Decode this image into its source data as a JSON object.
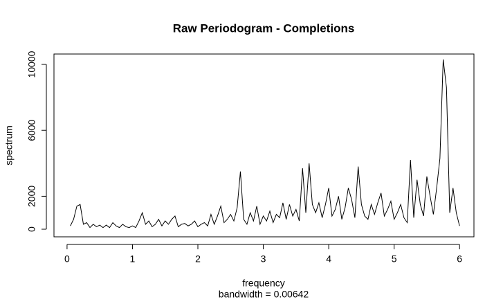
{
  "chart_data": {
    "type": "line",
    "title": "Raw Periodogram - Completions",
    "x_label": "frequency",
    "subtitle": "bandwidth = 0.00642",
    "y_label": "spectrum",
    "color": "#000000",
    "xlim": [
      -0.2,
      6.22
    ],
    "ylim": [
      -462,
      10630
    ],
    "xticks": [
      0,
      1,
      2,
      3,
      4,
      5,
      6
    ],
    "yticks": [
      0,
      2000,
      6000,
      10000
    ],
    "x": [
      0.05,
      0.1,
      0.15,
      0.2,
      0.25,
      0.3,
      0.35,
      0.4,
      0.45,
      0.5,
      0.55,
      0.6,
      0.65,
      0.7,
      0.75,
      0.8,
      0.85,
      0.9,
      0.95,
      1.0,
      1.05,
      1.1,
      1.15,
      1.2,
      1.25,
      1.3,
      1.35,
      1.4,
      1.45,
      1.5,
      1.55,
      1.6,
      1.65,
      1.7,
      1.75,
      1.8,
      1.85,
      1.9,
      1.95,
      2.0,
      2.05,
      2.1,
      2.15,
      2.2,
      2.25,
      2.3,
      2.35,
      2.4,
      2.45,
      2.5,
      2.55,
      2.6,
      2.65,
      2.7,
      2.75,
      2.8,
      2.85,
      2.9,
      2.95,
      3.0,
      3.05,
      3.1,
      3.15,
      3.2,
      3.25,
      3.3,
      3.35,
      3.4,
      3.45,
      3.5,
      3.55,
      3.6,
      3.65,
      3.7,
      3.75,
      3.8,
      3.85,
      3.9,
      3.95,
      4.0,
      4.05,
      4.1,
      4.15,
      4.2,
      4.25,
      4.3,
      4.35,
      4.4,
      4.45,
      4.5,
      4.55,
      4.6,
      4.65,
      4.7,
      4.75,
      4.8,
      4.85,
      4.9,
      4.95,
      5.0,
      5.05,
      5.1,
      5.15,
      5.2,
      5.25,
      5.3,
      5.35,
      5.4,
      5.45,
      5.5,
      5.55,
      5.6,
      5.65,
      5.7,
      5.75,
      5.8,
      5.85,
      5.9,
      5.95,
      6.0
    ],
    "values": [
      200,
      600,
      1400,
      1500,
      300,
      400,
      100,
      300,
      150,
      250,
      100,
      250,
      100,
      400,
      200,
      100,
      300,
      150,
      100,
      200,
      100,
      500,
      1000,
      300,
      500,
      150,
      300,
      600,
      200,
      500,
      300,
      600,
      800,
      150,
      300,
      350,
      200,
      300,
      500,
      150,
      300,
      400,
      200,
      900,
      300,
      800,
      1400,
      400,
      600,
      900,
      500,
      1300,
      3500,
      600,
      300,
      1000,
      500,
      1400,
      300,
      800,
      500,
      1100,
      400,
      900,
      700,
      1600,
      600,
      1500,
      800,
      1200,
      500,
      3700,
      1000,
      4000,
      1500,
      1000,
      1600,
      700,
      1500,
      2500,
      800,
      1200,
      2000,
      600,
      1300,
      2500,
      1800,
      700,
      3800,
      1500,
      800,
      600,
      1500,
      900,
      1600,
      2200,
      800,
      1200,
      1700,
      600,
      1000,
      1500,
      700,
      400,
      4200,
      700,
      3000,
      1500,
      800,
      3200,
      2000,
      900,
      2500,
      4300,
      10300,
      8600,
      1000,
      2500,
      1000,
      200
    ]
  }
}
